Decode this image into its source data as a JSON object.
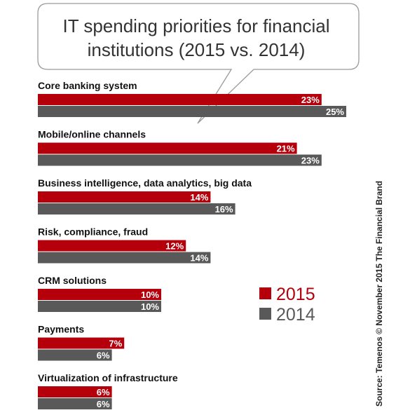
{
  "chart_data": {
    "type": "bar",
    "orientation": "horizontal",
    "title": "IT spending priorities for financial institutions (2015 vs. 2014)",
    "title_lines": [
      "IT spending priorities for financial",
      "institutions (2015 vs. 2014)"
    ],
    "categories": [
      "Core banking system",
      "Mobile/online channels",
      "Business intelligence, data analytics, big data",
      "Risk, compliance, fraud",
      "CRM solutions",
      "Payments",
      "Virtualization of infrastructure"
    ],
    "series": [
      {
        "name": "2015",
        "color": "#b5000b",
        "values": [
          23,
          21,
          14,
          12,
          10,
          7,
          6
        ],
        "labels": [
          "23%",
          "21%",
          "14%",
          "12%",
          "10%",
          "7%",
          "6%"
        ]
      },
      {
        "name": "2014",
        "color": "#595959",
        "values": [
          25,
          23,
          16,
          14,
          10,
          6,
          6
        ],
        "labels": [
          "25%",
          "23%",
          "16%",
          "14%",
          "10%",
          "6%",
          "6%"
        ]
      }
    ],
    "xlim": [
      0,
      25
    ],
    "grid": false,
    "legend": "right",
    "source": "Source: Temenos © November 2015 The Financial Brand"
  }
}
